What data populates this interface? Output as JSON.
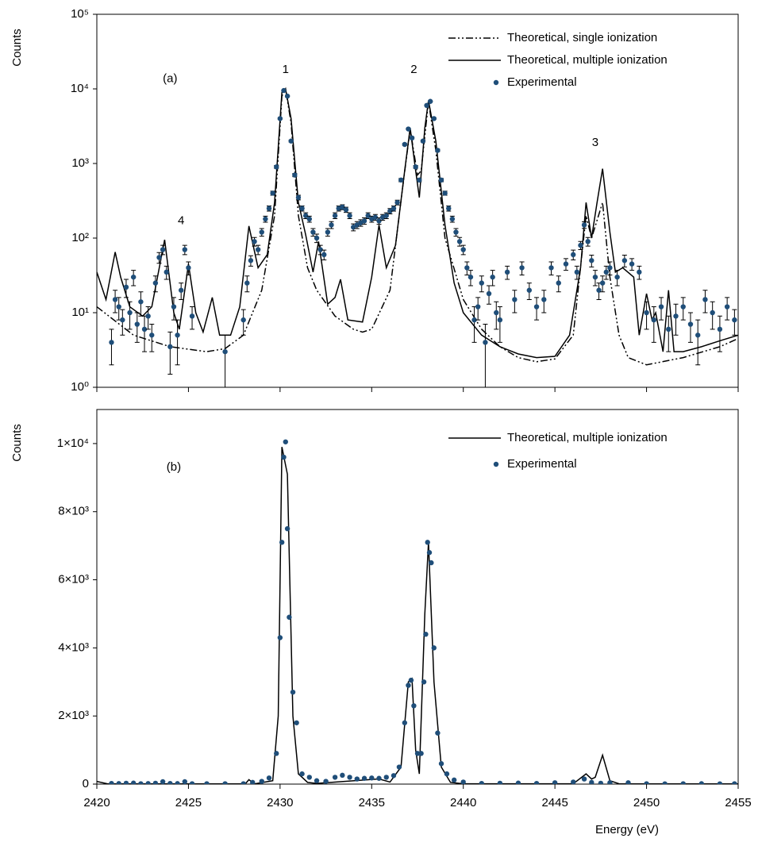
{
  "chart_data": [
    {
      "type": "line",
      "log_y": true,
      "ylabel": "Counts",
      "legend": "upper right",
      "xlim": [
        2420,
        2455
      ],
      "ylim": [
        1,
        100000
      ],
      "yticks": [
        {
          "value": 1,
          "label": "10⁰"
        },
        {
          "value": 10,
          "label": "10¹"
        },
        {
          "value": 100,
          "label": "10²"
        },
        {
          "value": 1000,
          "label": "10³"
        },
        {
          "value": 10000,
          "label": "10⁴"
        },
        {
          "value": 100000,
          "label": "10⁵"
        }
      ],
      "annotations": [
        {
          "text": "(a)",
          "x": 2424,
          "y": 13500
        },
        {
          "text": "1",
          "x": 2430.3,
          "y": 18000
        },
        {
          "text": "2",
          "x": 2437.3,
          "y": 18000
        },
        {
          "text": "3",
          "x": 2447.2,
          "y": 1900
        },
        {
          "text": "4",
          "x": 2424.6,
          "y": 170
        }
      ],
      "series": [
        {
          "name": "Theoretical, single ionization",
          "style": "dashdot",
          "color": "#000000",
          "x": [
            2420,
            2422,
            2424,
            2426,
            2427,
            2428,
            2429,
            2429.7,
            2430.1,
            2430.3,
            2430.6,
            2431,
            2431.5,
            2432,
            2433,
            2434,
            2434.5,
            2435,
            2436,
            2436.7,
            2437.1,
            2437.5,
            2437.7,
            2438.1,
            2438.5,
            2439,
            2440,
            2441,
            2442,
            2443,
            2444,
            2445,
            2446,
            2446.7,
            2447,
            2447.6,
            2448,
            2448.5,
            2449,
            2450,
            2452,
            2454,
            2455
          ],
          "values": [
            12,
            5,
            3.5,
            3,
            3.3,
            5,
            20,
            200,
            8000,
            10000,
            3500,
            200,
            40,
            20,
            9,
            6,
            5.5,
            6,
            20,
            500,
            2900,
            700,
            800,
            6800,
            1500,
            100,
            15,
            6,
            3.5,
            2.5,
            2.2,
            2.4,
            5,
            200,
            100,
            300,
            30,
            5,
            2.5,
            2,
            2.5,
            3.5,
            4.5
          ]
        },
        {
          "name": "Theoretical, multiple ionization",
          "style": "solid",
          "color": "#000000",
          "x": [
            2420,
            2420.5,
            2421,
            2421.3,
            2421.8,
            2422.5,
            2423,
            2423.7,
            2424.2,
            2424.5,
            2425,
            2425.4,
            2425.8,
            2426.3,
            2426.7,
            2427.3,
            2427.8,
            2428.3,
            2428.8,
            2429.3,
            2429.7,
            2430.1,
            2430.3,
            2430.6,
            2431,
            2431.4,
            2431.8,
            2432.1,
            2432.6,
            2433,
            2433.3,
            2433.7,
            2434.5,
            2435,
            2435.4,
            2435.8,
            2436.3,
            2436.8,
            2437.1,
            2437.4,
            2437.6,
            2437.9,
            2438.1,
            2438.5,
            2439,
            2439.5,
            2440,
            2441,
            2442,
            2443,
            2444,
            2445,
            2445.8,
            2446.4,
            2446.7,
            2447,
            2447.3,
            2447.6,
            2448,
            2448.3,
            2448.7,
            2449.3,
            2449.6,
            2450,
            2450.3,
            2450.5,
            2450.9,
            2451.2,
            2451.5,
            2452,
            2453,
            2454,
            2455
          ],
          "values": [
            35,
            15,
            65,
            30,
            12,
            9,
            12,
            95,
            10,
            6,
            45,
            10,
            5.5,
            16,
            5,
            5,
            12,
            145,
            40,
            60,
            300,
            9000,
            10000,
            4000,
            300,
            110,
            35,
            90,
            13,
            16,
            28,
            8,
            7.5,
            30,
            150,
            40,
            80,
            800,
            3000,
            800,
            350,
            3000,
            7000,
            2000,
            150,
            25,
            10,
            5,
            3.5,
            2.8,
            2.5,
            2.6,
            5,
            40,
            300,
            100,
            300,
            850,
            120,
            35,
            40,
            30,
            5,
            18,
            8,
            10,
            3,
            20,
            3,
            3,
            3.5,
            4.2,
            5
          ]
        },
        {
          "name": "Experimental",
          "style": "markers",
          "color": "#1f4e79",
          "x": [
            2420.8,
            2421,
            2421.2,
            2421.4,
            2421.6,
            2421.8,
            2422,
            2422.2,
            2422.4,
            2422.6,
            2422.8,
            2423,
            2423.2,
            2423.4,
            2423.6,
            2423.8,
            2424,
            2424.2,
            2424.4,
            2424.6,
            2424.8,
            2425,
            2425.2,
            2427,
            2428,
            2428.2,
            2428.4,
            2428.6,
            2428.8,
            2429,
            2429.2,
            2429.4,
            2429.6,
            2429.8,
            2430,
            2430.2,
            2430.4,
            2430.6,
            2430.8,
            2431,
            2431.2,
            2431.4,
            2431.6,
            2431.8,
            2432,
            2432.2,
            2432.4,
            2432.6,
            2432.8,
            2433,
            2433.2,
            2433.4,
            2433.6,
            2433.8,
            2434,
            2434.2,
            2434.4,
            2434.6,
            2434.8,
            2435,
            2435.2,
            2435.4,
            2435.6,
            2435.8,
            2436,
            2436.2,
            2436.4,
            2436.6,
            2436.8,
            2437,
            2437.2,
            2437.4,
            2437.6,
            2437.8,
            2438,
            2438.2,
            2438.4,
            2438.6,
            2438.8,
            2439,
            2439.2,
            2439.4,
            2439.6,
            2439.8,
            2440,
            2440.2,
            2440.4,
            2440.6,
            2440.8,
            2441,
            2441.2,
            2441.4,
            2441.6,
            2441.8,
            2442,
            2442.4,
            2442.8,
            2443.2,
            2443.6,
            2444,
            2444.4,
            2444.8,
            2445.2,
            2445.6,
            2446,
            2446.2,
            2446.4,
            2446.6,
            2446.8,
            2447,
            2447.2,
            2447.4,
            2447.6,
            2447.8,
            2448,
            2448.4,
            2448.8,
            2449.2,
            2449.6,
            2450,
            2450.4,
            2450.8,
            2451.2,
            2451.6,
            2452,
            2452.4,
            2452.8,
            2453.2,
            2453.6,
            2454,
            2454.4,
            2454.8
          ],
          "values": [
            4,
            15,
            12,
            8,
            22,
            10,
            30,
            7,
            14,
            6,
            9,
            5,
            25,
            55,
            70,
            35,
            3.5,
            12,
            5,
            20,
            70,
            40,
            9,
            3,
            8,
            25,
            50,
            90,
            70,
            120,
            180,
            250,
            400,
            900,
            4000,
            9500,
            8000,
            2000,
            700,
            350,
            250,
            200,
            180,
            120,
            100,
            70,
            60,
            120,
            150,
            200,
            250,
            260,
            240,
            200,
            140,
            150,
            160,
            170,
            200,
            180,
            190,
            170,
            190,
            200,
            230,
            250,
            300,
            600,
            1800,
            2900,
            2200,
            900,
            600,
            2000,
            6000,
            6800,
            4000,
            1500,
            600,
            400,
            250,
            180,
            120,
            90,
            70,
            40,
            30,
            8,
            12,
            25,
            4,
            18,
            30,
            10,
            8,
            35,
            15,
            40,
            20,
            12,
            15,
            40,
            25,
            45,
            60,
            35,
            80,
            150,
            90,
            50,
            30,
            20,
            25,
            35,
            40,
            30,
            50,
            45,
            35,
            10,
            8,
            12,
            6,
            9,
            12,
            7,
            5,
            15,
            10,
            6,
            12,
            8
          ],
          "errors": [
            2,
            5,
            4,
            3,
            6,
            4,
            7,
            3,
            5,
            3,
            3,
            2,
            6,
            9,
            10,
            7,
            2,
            4,
            3,
            5,
            10,
            8,
            3,
            2,
            3,
            6,
            8,
            12,
            10,
            14,
            17,
            20,
            25,
            40,
            80,
            120,
            110,
            60,
            35,
            25,
            20,
            18,
            17,
            14,
            13,
            10,
            9,
            14,
            16,
            18,
            20,
            20,
            19,
            18,
            15,
            16,
            16,
            17,
            18,
            17,
            17,
            17,
            17,
            18,
            19,
            20,
            22,
            30,
            55,
            70,
            60,
            40,
            30,
            60,
            100,
            110,
            80,
            50,
            30,
            25,
            20,
            17,
            14,
            12,
            10,
            8,
            7,
            4,
            4,
            6,
            3,
            5,
            7,
            4,
            4,
            7,
            5,
            8,
            5,
            4,
            5,
            8,
            6,
            8,
            9,
            7,
            10,
            15,
            12,
            9,
            7,
            5,
            6,
            7,
            8,
            7,
            9,
            8,
            7,
            4,
            4,
            4,
            3,
            4,
            4,
            3,
            3,
            5,
            4,
            3,
            4,
            3
          ]
        }
      ]
    },
    {
      "type": "line",
      "log_y": false,
      "ylabel": "Counts",
      "xlabel": "Energy (eV)",
      "legend": "upper right",
      "xlim": [
        2420,
        2455
      ],
      "ylim": [
        0,
        11000
      ],
      "xticks": [
        2420,
        2425,
        2430,
        2435,
        2440,
        2445,
        2450,
        2455
      ],
      "yticks": [
        0,
        {
          "value": 2000,
          "label": "2×10³"
        },
        {
          "value": 4000,
          "label": "4×10³"
        },
        {
          "value": 6000,
          "label": "6×10³"
        },
        {
          "value": 8000,
          "label": "8×10³"
        },
        {
          "value": 10000,
          "label": "1×10⁴"
        }
      ],
      "annotations": [
        {
          "text": "(b)",
          "x": 2424.2,
          "y": 9300
        }
      ],
      "series": [
        {
          "name": "Theoretical, multiple ionization",
          "style": "solid",
          "color": "#000000",
          "x": [
            2420,
            2420.6,
            2428.1,
            2428.3,
            2428.6,
            2429.6,
            2429.9,
            2430.1,
            2430.4,
            2430.7,
            2431,
            2431.5,
            2432,
            2435.4,
            2436,
            2436.6,
            2437,
            2437.2,
            2437.4,
            2437.6,
            2437.9,
            2438.1,
            2438.4,
            2438.8,
            2439.3,
            2440,
            2446,
            2446.7,
            2447,
            2447.2,
            2447.6,
            2448,
            2448.5,
            2455
          ],
          "values": [
            80,
            5,
            5,
            130,
            5,
            100,
            2000,
            9900,
            9100,
            2000,
            300,
            50,
            20,
            150,
            60,
            500,
            3000,
            3100,
            1000,
            300,
            5000,
            7100,
            3000,
            500,
            50,
            10,
            10,
            300,
            150,
            200,
            850,
            100,
            10,
            5
          ]
        },
        {
          "name": "Experimental",
          "style": "markers",
          "color": "#1f4e79",
          "x": [
            2420.8,
            2421.2,
            2421.6,
            2422,
            2422.4,
            2422.8,
            2423.2,
            2423.6,
            2424,
            2424.4,
            2424.8,
            2425.2,
            2426,
            2427,
            2428,
            2428.5,
            2429,
            2429.4,
            2429.8,
            2430,
            2430.1,
            2430.2,
            2430.3,
            2430.4,
            2430.5,
            2430.7,
            2430.9,
            2431.2,
            2431.6,
            2432,
            2432.5,
            2433,
            2433.4,
            2433.8,
            2434.2,
            2434.6,
            2435,
            2435.4,
            2435.8,
            2436.2,
            2436.5,
            2436.8,
            2437,
            2437.15,
            2437.3,
            2437.5,
            2437.7,
            2437.85,
            2437.95,
            2438.05,
            2438.15,
            2438.25,
            2438.4,
            2438.6,
            2438.8,
            2439.1,
            2439.5,
            2440,
            2441,
            2442,
            2443,
            2444,
            2445,
            2446,
            2446.6,
            2447,
            2447.5,
            2448,
            2449,
            2450,
            2451,
            2452,
            2453,
            2454,
            2454.8
          ],
          "values": [
            20,
            15,
            25,
            30,
            10,
            15,
            25,
            70,
            20,
            15,
            70,
            10,
            10,
            10,
            10,
            50,
            80,
            180,
            900,
            4300,
            7100,
            9600,
            10050,
            7500,
            4900,
            2700,
            1800,
            300,
            200,
            100,
            80,
            200,
            260,
            200,
            150,
            170,
            180,
            170,
            200,
            250,
            500,
            1800,
            2900,
            3050,
            2300,
            900,
            900,
            3000,
            4400,
            7100,
            6800,
            6500,
            4000,
            1500,
            600,
            300,
            120,
            60,
            20,
            25,
            30,
            20,
            40,
            60,
            150,
            50,
            25,
            40,
            40,
            10,
            8,
            10,
            12,
            8,
            10
          ]
        }
      ]
    }
  ]
}
